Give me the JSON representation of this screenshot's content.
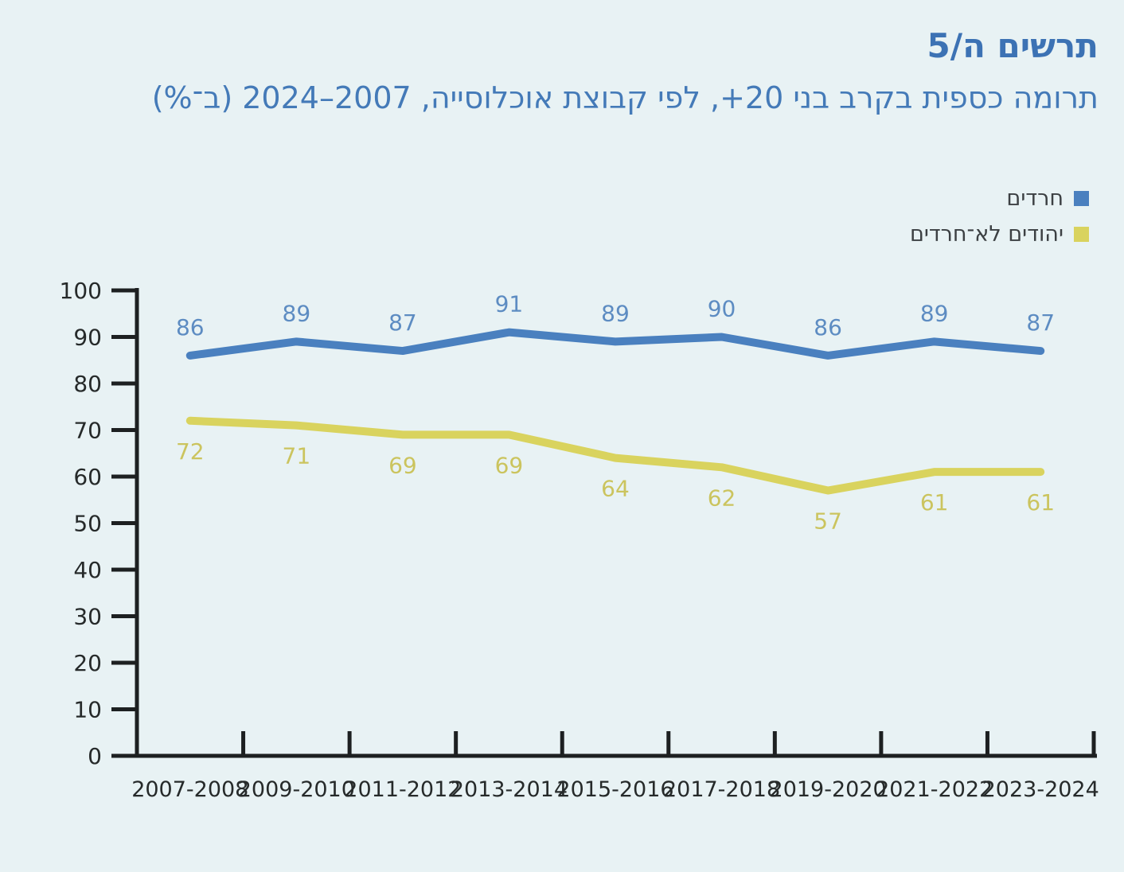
{
  "page": {
    "background": "#e8f2f4"
  },
  "header": {
    "title": "תרשים ה/5",
    "subtitle": "תרומה כספית בקרב בני 20+, לפי קבוצת אוכלוסייה, 2007–2024 (ב־%)",
    "title_color": "#3c72b4"
  },
  "chart_data": {
    "type": "line",
    "title": "תרומה כספית בקרב בני 20+, לפי קבוצת אוכלוסייה, 2007–2024 (ב־%)",
    "categories": [
      "2007-2008",
      "2009-2010",
      "2011-2012",
      "2013-2014",
      "2015-2016",
      "2017-2018",
      "2019-2020",
      "2021-2022",
      "2023-2024"
    ],
    "series": [
      {
        "name": "חרדים",
        "color": "#4a80bf",
        "label_color": "#5d8cc2",
        "values": [
          86,
          89,
          87,
          91,
          89,
          90,
          86,
          89,
          87
        ],
        "label_position": "above"
      },
      {
        "name": "יהודים לא־חרדים",
        "color": "#d9d35e",
        "label_color": "#cbc45e",
        "values": [
          72,
          71,
          69,
          69,
          64,
          62,
          57,
          61,
          61
        ],
        "label_position": "below"
      }
    ],
    "xlabel": "",
    "ylabel": "",
    "ylim": [
      0,
      100
    ],
    "ytick_step": 10,
    "grid": false,
    "legend_position": "top-right",
    "axis_color": "#1d2021",
    "tick_label_color": "#262a2a"
  }
}
